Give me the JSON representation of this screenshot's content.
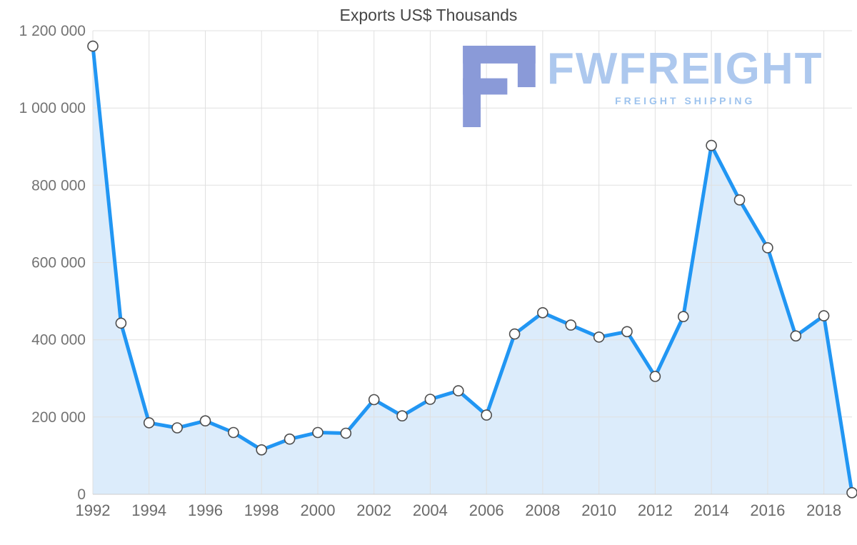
{
  "chart_data": {
    "type": "area",
    "title": "Exports US$ Thousands",
    "x": [
      1992,
      1993,
      1994,
      1995,
      1996,
      1997,
      1998,
      1999,
      2000,
      2001,
      2002,
      2003,
      2004,
      2005,
      2006,
      2007,
      2008,
      2009,
      2010,
      2011,
      2012,
      2013,
      2014,
      2015,
      2016,
      2017,
      2018,
      2019
    ],
    "values": [
      1160000,
      443000,
      185000,
      172000,
      190000,
      160000,
      115000,
      143000,
      160000,
      158000,
      245000,
      203000,
      246000,
      268000,
      205000,
      415000,
      470000,
      438000,
      407000,
      421000,
      305000,
      460000,
      903000,
      762000,
      638000,
      410000,
      462000,
      4000
    ],
    "ylim": [
      0,
      1200000
    ],
    "yticks": [
      0,
      200000,
      400000,
      600000,
      800000,
      1000000,
      1200000
    ],
    "xticks": [
      1992,
      1994,
      1996,
      1998,
      2000,
      2002,
      2004,
      2006,
      2008,
      2010,
      2012,
      2014,
      2016,
      2018
    ],
    "grid": true,
    "legend": "none",
    "line_color": "#2196f3",
    "area_color": "#dcecfb",
    "marker_fill": "#ffffff",
    "marker_stroke": "#4d4d4d",
    "grid_color": "#e0e0e0",
    "axis_color": "#cccccc",
    "tick_label_color": "#737373",
    "title_color": "#454545"
  },
  "watermark": {
    "brand": "FWFREIGHT",
    "tagline": "FREIGHT SHIPPING",
    "icon_color": "#8a9ad8",
    "wordmark_color": "#adc8ee",
    "tagline_color": "#9dc3ee"
  }
}
